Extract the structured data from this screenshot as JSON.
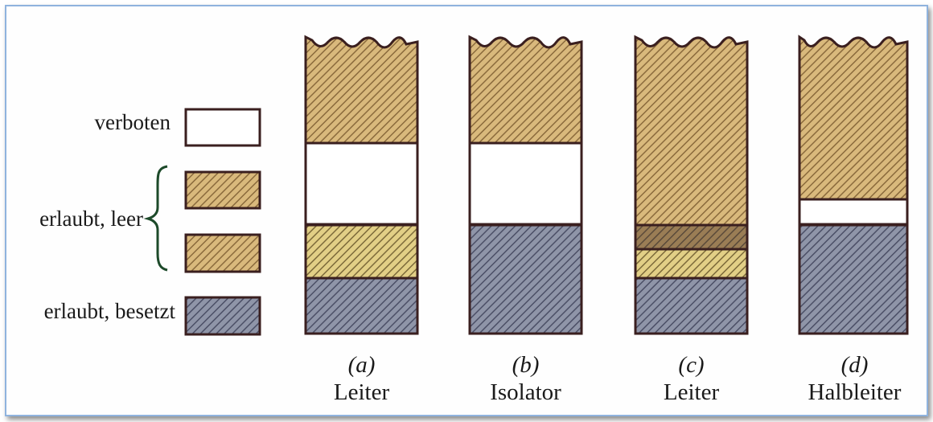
{
  "legend": {
    "forbidden": "verboten",
    "allowed_empty": "erlaubt, leer",
    "allowed_occupied": "erlaubt, besetzt"
  },
  "columns": [
    {
      "letter": "(a)",
      "name": "Leiter"
    },
    {
      "letter": "(b)",
      "name": "Isolator"
    },
    {
      "letter": "(c)",
      "name": "Leiter"
    },
    {
      "letter": "(d)",
      "name": "Halbleiter"
    }
  ],
  "colors": {
    "empty_band": "#d9b97c",
    "empty_stripe": "#8a6a3c",
    "occupied_band": "#8f95a8",
    "occupied_stripe": "#4b4f66",
    "partial_band": "#e2cf86",
    "overlap_band": "#9a7d55",
    "outline": "#3a1f1f",
    "brace": "#1d4a2a",
    "frame": "#8fb3de"
  }
}
